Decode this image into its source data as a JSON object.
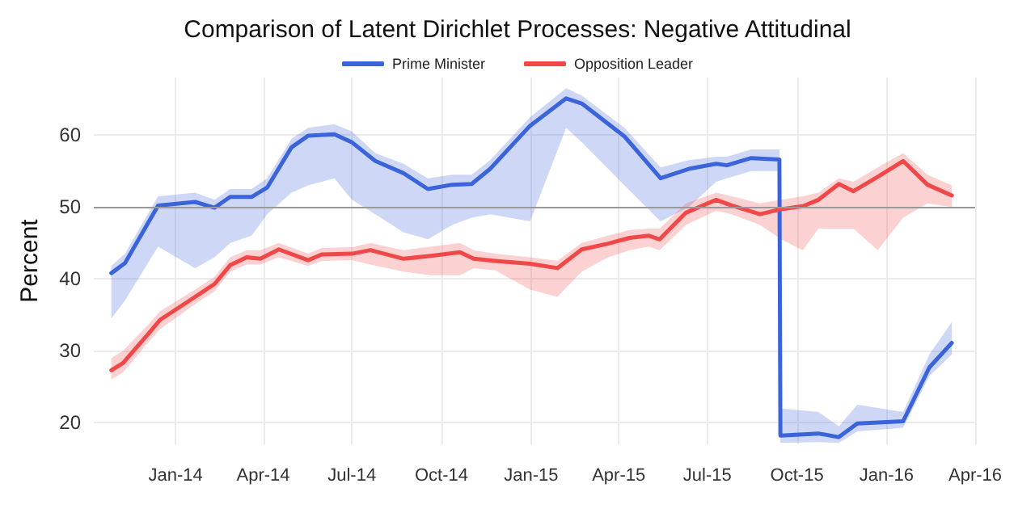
{
  "chart_data": {
    "type": "line",
    "title": "Comparison of Latent Dirichlet Processes: Negative Attitudinal",
    "ylabel": "Percent",
    "xlim": [
      "2013-10-09",
      "2016-04-01"
    ],
    "xticks": [
      {
        "value": "2014-01-01",
        "label": "Jan-14"
      },
      {
        "value": "2014-04-01",
        "label": "Apr-14"
      },
      {
        "value": "2014-07-01",
        "label": "Jul-14"
      },
      {
        "value": "2014-10-01",
        "label": "Oct-14"
      },
      {
        "value": "2015-01-01",
        "label": "Jan-15"
      },
      {
        "value": "2015-04-01",
        "label": "Apr-15"
      },
      {
        "value": "2015-07-01",
        "label": "Jul-15"
      },
      {
        "value": "2015-10-01",
        "label": "Oct-15"
      },
      {
        "value": "2016-01-01",
        "label": "Jan-16"
      },
      {
        "value": "2016-04-01",
        "label": "Apr-16"
      }
    ],
    "ylim": [
      17,
      68
    ],
    "yticks": [
      20,
      30,
      40,
      50,
      60
    ],
    "grid": true,
    "legend": "top",
    "marker": "none",
    "line_style": "solid",
    "ref_lines": [
      {
        "axis": "y",
        "value": 50,
        "color": "#999999"
      }
    ],
    "series": [
      {
        "name": "Prime Minister",
        "color": "#3b64db",
        "x": [
          "2013-10-27",
          "2013-11-10",
          "2013-12-14",
          "2014-01-21",
          "2014-02-10",
          "2014-02-26",
          "2014-03-20",
          "2014-04-05",
          "2014-04-30",
          "2014-05-17",
          "2014-06-13",
          "2014-07-01",
          "2014-07-25",
          "2014-08-23",
          "2014-09-17",
          "2014-10-12",
          "2014-11-01",
          "2014-11-20",
          "2014-12-31",
          "2015-02-06",
          "2015-02-22",
          "2015-04-07",
          "2015-05-14",
          "2015-06-12",
          "2015-07-10",
          "2015-07-21",
          "2015-08-15",
          "2015-09-13",
          "2015-09-14",
          "2015-10-23",
          "2015-11-13",
          "2015-12-02",
          "2016-01-18",
          "2016-02-14",
          "2016-03-08"
        ],
        "values": [
          40.8,
          42.2,
          50.2,
          50.7,
          49.9,
          51.4,
          51.4,
          52.7,
          58.3,
          59.9,
          60.1,
          59.0,
          56.4,
          54.7,
          52.5,
          53.1,
          53.2,
          55.3,
          61.3,
          65.1,
          64.4,
          59.8,
          54.0,
          55.3,
          56.0,
          55.8,
          56.8,
          56.6,
          18.2,
          18.5,
          18.0,
          19.9,
          20.2,
          27.7,
          31.1
        ],
        "lower": [
          34.5,
          37,
          44.5,
          41.5,
          43,
          45,
          46,
          49,
          52,
          53,
          54,
          51,
          49,
          46.5,
          45.5,
          47.5,
          48.5,
          49,
          48,
          61,
          59,
          53,
          48,
          50,
          53.5,
          54,
          55,
          55,
          17.2,
          17.3,
          17.2,
          18.8,
          19.3,
          26.5,
          29.5
        ],
        "upper": [
          41.8,
          43.5,
          51.5,
          52,
          51,
          52.5,
          52.5,
          54,
          59.5,
          61,
          61.5,
          60.5,
          57.5,
          56,
          54,
          54.5,
          54.5,
          56.5,
          62.5,
          66.5,
          65.5,
          61,
          55.5,
          56.5,
          57,
          57,
          58,
          58,
          22,
          21.5,
          19.5,
          22.5,
          21.5,
          29.5,
          34
        ]
      },
      {
        "name": "Opposition Leader",
        "color": "#f04848",
        "x": [
          "2013-10-27",
          "2013-11-08",
          "2013-12-03",
          "2013-12-16",
          "2014-01-21",
          "2014-02-10",
          "2014-02-26",
          "2014-03-15",
          "2014-03-29",
          "2014-04-17",
          "2014-05-17",
          "2014-05-31",
          "2014-07-01",
          "2014-07-20",
          "2014-08-23",
          "2014-09-20",
          "2014-10-20",
          "2014-11-03",
          "2014-11-25",
          "2014-12-31",
          "2015-01-28",
          "2015-02-22",
          "2015-03-21",
          "2015-04-12",
          "2015-05-02",
          "2015-05-13",
          "2015-06-09",
          "2015-07-10",
          "2015-07-26",
          "2015-08-24",
          "2015-09-15",
          "2015-10-07",
          "2015-10-23",
          "2015-11-13",
          "2015-11-28",
          "2015-12-23",
          "2016-01-18",
          "2016-02-12",
          "2016-03-08"
        ],
        "values": [
          27.3,
          28.3,
          32.2,
          34.3,
          37.5,
          39.3,
          41.9,
          43.0,
          42.8,
          44.1,
          42.6,
          43.4,
          43.5,
          44.0,
          42.8,
          43.2,
          43.7,
          42.8,
          42.5,
          42.1,
          41.5,
          44.1,
          44.9,
          45.7,
          46.0,
          45.5,
          49.2,
          51.0,
          50.2,
          49.0,
          49.7,
          50.1,
          51.0,
          53.2,
          52.2,
          54.2,
          56.4,
          53.1,
          51.6
        ],
        "lower": [
          26,
          27,
          31,
          33,
          36.5,
          38.3,
          41,
          42,
          42,
          43,
          41.8,
          42.5,
          42.6,
          42,
          41,
          40.5,
          40.5,
          41.5,
          41.2,
          38.5,
          37.5,
          41,
          43,
          44,
          44.5,
          44,
          47.5,
          49.5,
          49,
          47.5,
          45.5,
          44,
          47,
          47,
          47,
          44,
          48.5,
          50.5,
          50
        ],
        "upper": [
          29,
          30,
          33.5,
          35.5,
          38.5,
          40.3,
          43,
          44,
          44,
          45,
          43.5,
          44.3,
          44.4,
          45,
          44,
          44.5,
          45,
          44,
          43.5,
          43,
          42.5,
          45,
          46,
          46.8,
          47,
          47,
          50.5,
          52,
          51.5,
          50.5,
          51,
          51.5,
          52,
          54,
          53.5,
          55.5,
          57.5,
          54.5,
          53
        ]
      }
    ]
  }
}
